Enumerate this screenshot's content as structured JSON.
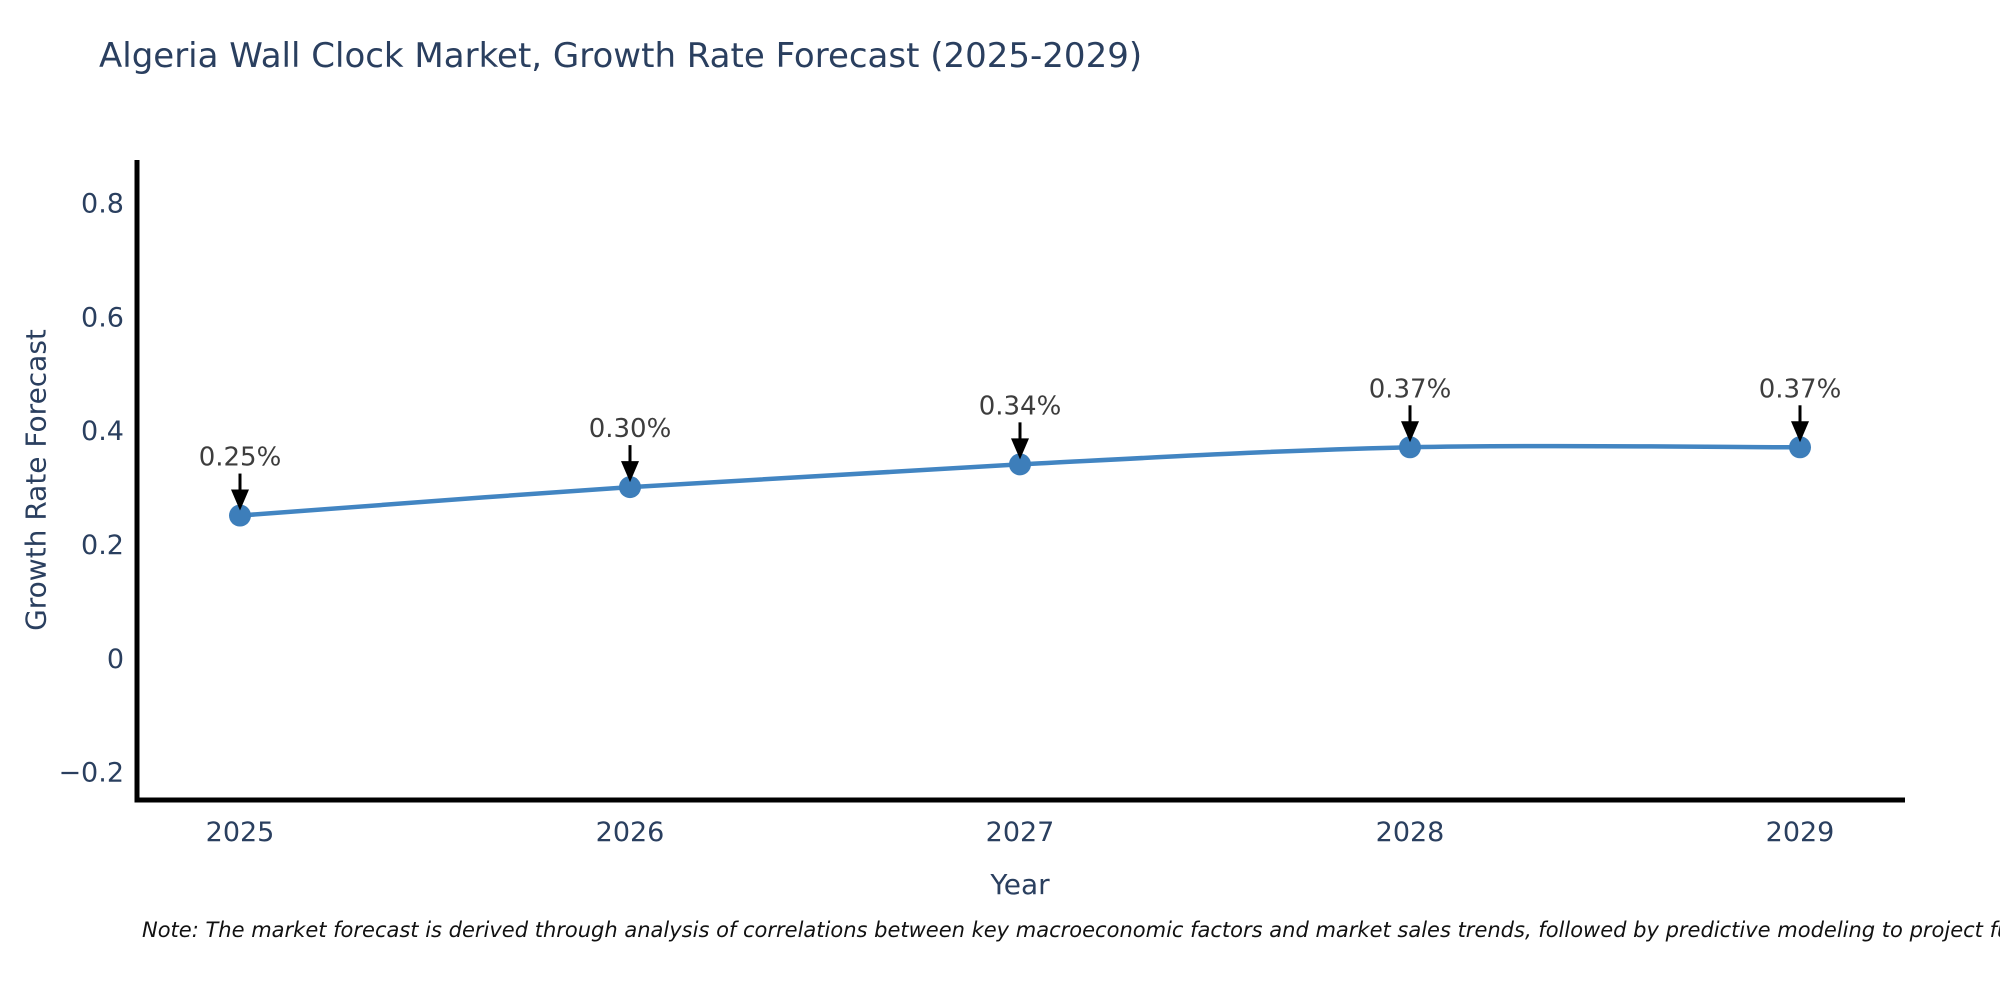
{
  "note": "Note: The market forecast is derived through analysis of correlations between key macroeconomic factors and market sales trends, followed by predictive modeling to project future sa",
  "chart_data": {
    "type": "line",
    "title": "Algeria Wall Clock Market, Growth Rate Forecast (2025-2029)",
    "xlabel": "Year",
    "ylabel": "Growth Rate Forecast",
    "x": [
      2025,
      2026,
      2027,
      2028,
      2029
    ],
    "x_tick_labels": [
      "2025",
      "2026",
      "2027",
      "2028",
      "2029"
    ],
    "series": [
      {
        "name": "Growth Rate Forecast",
        "values": [
          0.25,
          0.3,
          0.34,
          0.37,
          0.37
        ],
        "point_labels": [
          "0.25%",
          "0.30%",
          "0.34%",
          "0.37%",
          "0.37%"
        ]
      }
    ],
    "y_ticks": [
      {
        "value": 0.8,
        "label": "0.8"
      },
      {
        "value": 0.6,
        "label": "0.6"
      },
      {
        "value": 0.4,
        "label": "0.4"
      },
      {
        "value": 0.2,
        "label": "0.2"
      },
      {
        "value": 0,
        "label": "0"
      },
      {
        "value": -0.2,
        "label": "−0.2"
      }
    ],
    "ylim": [
      -0.25,
      0.875
    ],
    "grid": false,
    "legend": "none",
    "line_shape": "spline",
    "annotation_arrows": true,
    "colors": {
      "line": "#4285c2",
      "marker": "#3d7eba",
      "axis": "#000000",
      "tick_text": "#2a3f5f",
      "title_text": "#2a3f5f",
      "annotation_text": "#3d3d3d",
      "arrow": "#000000",
      "background": "#ffffff"
    }
  }
}
